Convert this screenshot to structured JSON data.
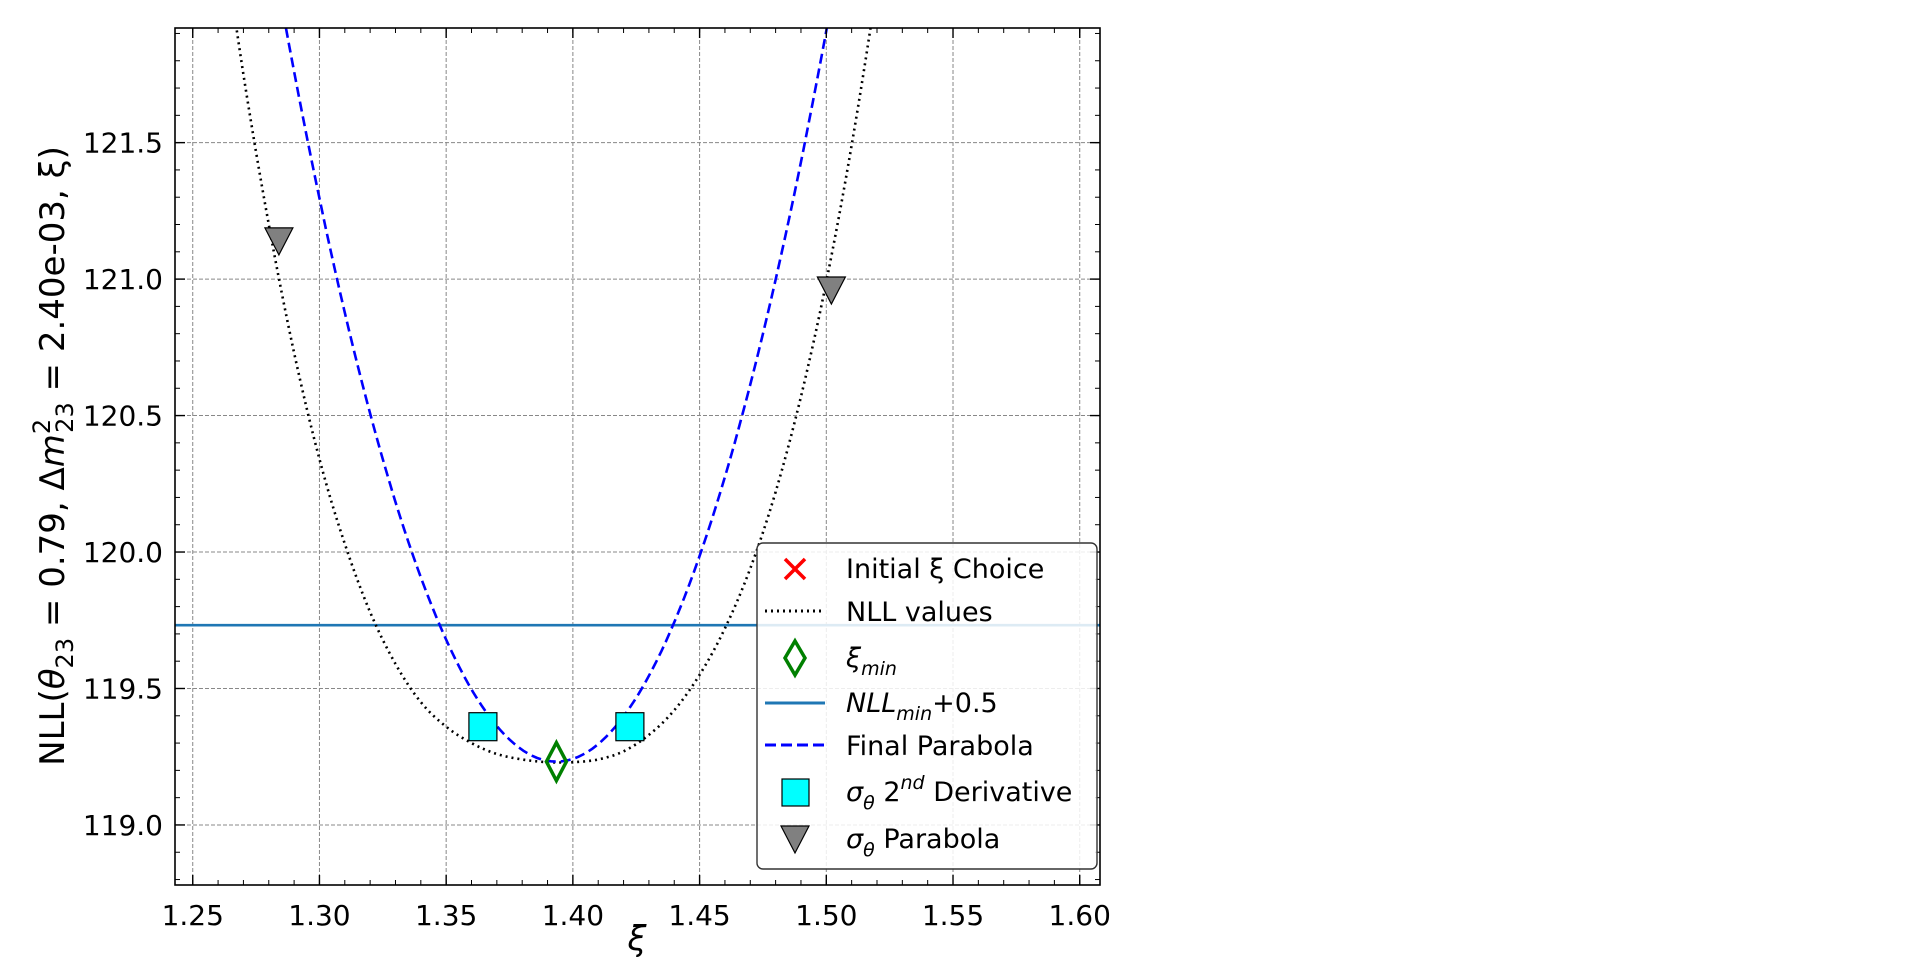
{
  "chart_data": {
    "type": "line",
    "xlabel": "ξ",
    "ylabel": {
      "prefix": "NLL(",
      "theta": "θ",
      "theta_sub": "23",
      "mid": " = 0.79, Δ",
      "m": "m",
      "m_sup": "2",
      "m_sub": "23",
      "suffix": " = 2.40e-03, ξ)"
    },
    "xlim": [
      1.243,
      1.608
    ],
    "ylim": [
      118.78,
      121.92
    ],
    "x_ticks": [
      1.25,
      1.3,
      1.35,
      1.4,
      1.45,
      1.5,
      1.55,
      1.6
    ],
    "x_tick_labels": [
      "1.25",
      "1.30",
      "1.35",
      "1.40",
      "1.45",
      "1.50",
      "1.55",
      "1.60"
    ],
    "y_ticks": [
      119.0,
      119.5,
      120.0,
      120.5,
      121.0,
      121.5
    ],
    "y_tick_labels": [
      "119.0",
      "119.5",
      "120.0",
      "120.5",
      "121.0",
      "121.5"
    ],
    "grid": true,
    "legend_position": "lower-right",
    "series": [
      {
        "name": "NLL values",
        "style": "dotted",
        "color": "#000000",
        "x": [
          1.26,
          1.27,
          1.28,
          1.29,
          1.3,
          1.31,
          1.32,
          1.33,
          1.34,
          1.35,
          1.36,
          1.37,
          1.38,
          1.39,
          1.4,
          1.41,
          1.42,
          1.43,
          1.44,
          1.45,
          1.46,
          1.47,
          1.48,
          1.49,
          1.5,
          1.51,
          1.52,
          1.53
        ],
        "y": [
          122.39,
          121.75,
          121.2,
          120.73,
          120.34,
          120.03,
          119.78,
          119.59,
          119.45,
          119.36,
          119.3,
          119.26,
          119.24,
          119.23,
          119.23,
          119.24,
          119.27,
          119.33,
          119.42,
          119.55,
          119.72,
          119.94,
          120.22,
          120.57,
          120.99,
          121.49,
          122.08,
          122.77
        ]
      },
      {
        "name": "Final Parabola",
        "style": "dashed",
        "color": "#0000ff",
        "vertex": [
          1.3935,
          119.232
        ],
        "curvature": 236,
        "x_range": [
          1.25,
          1.54
        ]
      },
      {
        "name": "NLL_min+0.5",
        "style": "solid",
        "color": "#1f77b4",
        "y": 119.732
      }
    ],
    "markers": [
      {
        "name": "ξ_min",
        "symbol": "diamond",
        "color": "#008000",
        "x": 1.3935,
        "y": 119.232
      },
      {
        "name": "σθ 2nd Derivative",
        "symbol": "square",
        "color": "#00ffff",
        "x": [
          1.3645,
          1.4225
        ],
        "y": [
          119.36,
          119.36
        ]
      },
      {
        "name": "σθ Parabola",
        "symbol": "triangle-down",
        "color": "#808080",
        "x": [
          1.284,
          1.502
        ],
        "y": [
          121.14,
          120.96
        ]
      }
    ],
    "legend": [
      {
        "symbol": "x",
        "color": "#ff0000",
        "label": "Initial ξ Choice"
      },
      {
        "symbol": "dotted",
        "color": "#000000",
        "label": "NLL values"
      },
      {
        "symbol": "diamond",
        "color": "#008000",
        "label_main": "ξ",
        "label_sub": "min"
      },
      {
        "symbol": "solid",
        "color": "#1f77b4",
        "label_main": "NLL",
        "label_sub": "min",
        "label_rest": "+0.5"
      },
      {
        "symbol": "dashed",
        "color": "#0000ff",
        "label": "Final Parabola"
      },
      {
        "symbol": "square",
        "color": "#00ffff",
        "label_main": "σ",
        "label_sub": "θ",
        "label_mid": " 2",
        "label_sup": "nd",
        "label_rest": " Derivative"
      },
      {
        "symbol": "triangle-down",
        "color": "#808080",
        "label_main": "σ",
        "label_sub": "θ",
        "label_rest": " Parabola"
      }
    ]
  }
}
